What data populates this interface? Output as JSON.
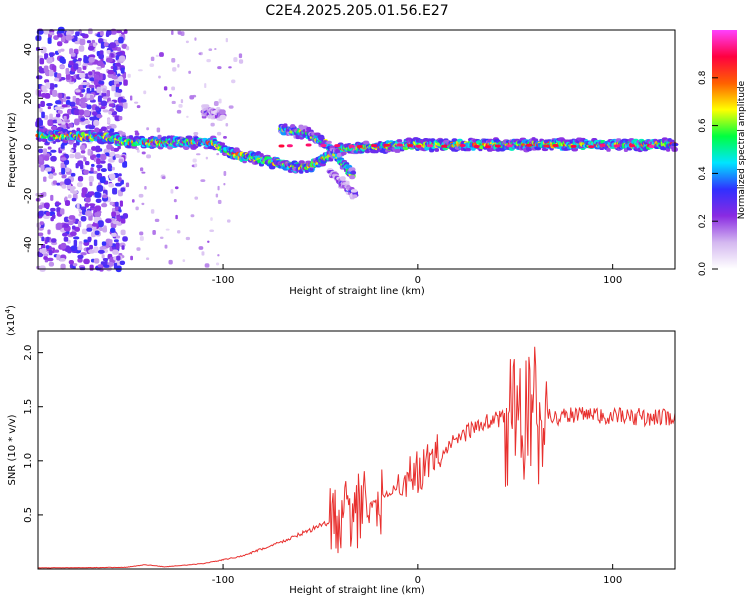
{
  "title": "C2E4.2025.205.01.56.E27",
  "chart_data": [
    {
      "type": "heatmap",
      "xlabel": "Height of straight line (km)",
      "ylabel": "Frequency (Hz)",
      "xlim": [
        -195,
        132
      ],
      "ylim": [
        -50,
        48
      ],
      "x_ticks": [
        -100,
        0,
        100
      ],
      "y_ticks": [
        -40,
        -20,
        0,
        20,
        40
      ],
      "colorbar": {
        "label": "Normalized spectral amplitude",
        "range": [
          0,
          1
        ],
        "ticks": [
          "0.0",
          "0.2",
          "0.4",
          "0.6",
          "0.8"
        ],
        "tick_values": [
          0.0,
          0.2,
          0.4,
          0.6,
          0.8
        ],
        "colors": [
          "#ffffff",
          "#d4b8f0",
          "#8a2be2",
          "#3030ff",
          "#00e5ff",
          "#00ff40",
          "#ffff00",
          "#ff6000",
          "#ff0040",
          "#ff40ff"
        ]
      },
      "features": [
        {
          "name": "main-band",
          "points": [
            [
              -195,
              5
            ],
            [
              -160,
              4
            ],
            [
              -150,
              2
            ],
            [
              -120,
              2
            ],
            [
              -105,
              2
            ],
            [
              -95,
              -3
            ],
            [
              -80,
              -5
            ],
            [
              -65,
              -8
            ],
            [
              -55,
              -8
            ],
            [
              -40,
              -1
            ],
            [
              -25,
              0
            ],
            [
              0,
              1
            ],
            [
              50,
              1
            ],
            [
              132,
              1
            ]
          ],
          "peak": 0.75
        },
        {
          "name": "upper-branch",
          "points": [
            [
              -70,
              7
            ],
            [
              -58,
              6
            ],
            [
              -48,
              2
            ],
            [
              -40,
              -5
            ],
            [
              -33,
              -12
            ]
          ],
          "peak": 0.6
        },
        {
          "name": "lower-branch",
          "points": [
            [
              -45,
              -10
            ],
            [
              -32,
              -20
            ]
          ],
          "peak": 0.3
        },
        {
          "name": "high-patch",
          "points": [
            [
              -110,
              15
            ],
            [
              -100,
              13
            ]
          ],
          "peak": 0.25
        }
      ]
    },
    {
      "type": "line",
      "xlabel": "Height of straight line (km)",
      "ylabel": "SNR (10 * v/v)",
      "y_unit_label": "(x10",
      "y_unit_exp": "4",
      "xlim": [
        -195,
        132
      ],
      "ylim": [
        0,
        22000
      ],
      "x_ticks": [
        -100,
        0,
        100
      ],
      "y_ticks": [
        5000,
        10000,
        15000,
        20000
      ],
      "y_tick_labels": [
        "0.5",
        "1.0",
        "1.5",
        "2.0"
      ],
      "color": "#e8302e",
      "trend": [
        [
          -195,
          100
        ],
        [
          -150,
          150
        ],
        [
          -140,
          400
        ],
        [
          -130,
          200
        ],
        [
          -110,
          500
        ],
        [
          -90,
          1200
        ],
        [
          -70,
          2500
        ],
        [
          -50,
          4000
        ],
        [
          -35,
          5000
        ],
        [
          -25,
          5800
        ],
        [
          -15,
          7000
        ],
        [
          0,
          9000
        ],
        [
          10,
          10500
        ],
        [
          20,
          12000
        ],
        [
          30,
          13200
        ],
        [
          40,
          13800
        ],
        [
          50,
          14000
        ],
        [
          60,
          14000
        ],
        [
          80,
          14200
        ],
        [
          100,
          14100
        ],
        [
          132,
          14000
        ]
      ],
      "bursts": [
        [
          -45,
          -25,
          3500
        ],
        [
          -22,
          -18,
          3500
        ],
        [
          -10,
          12,
          2000
        ],
        [
          45,
          66,
          7000
        ]
      ],
      "max": 22000,
      "min": 0
    }
  ]
}
